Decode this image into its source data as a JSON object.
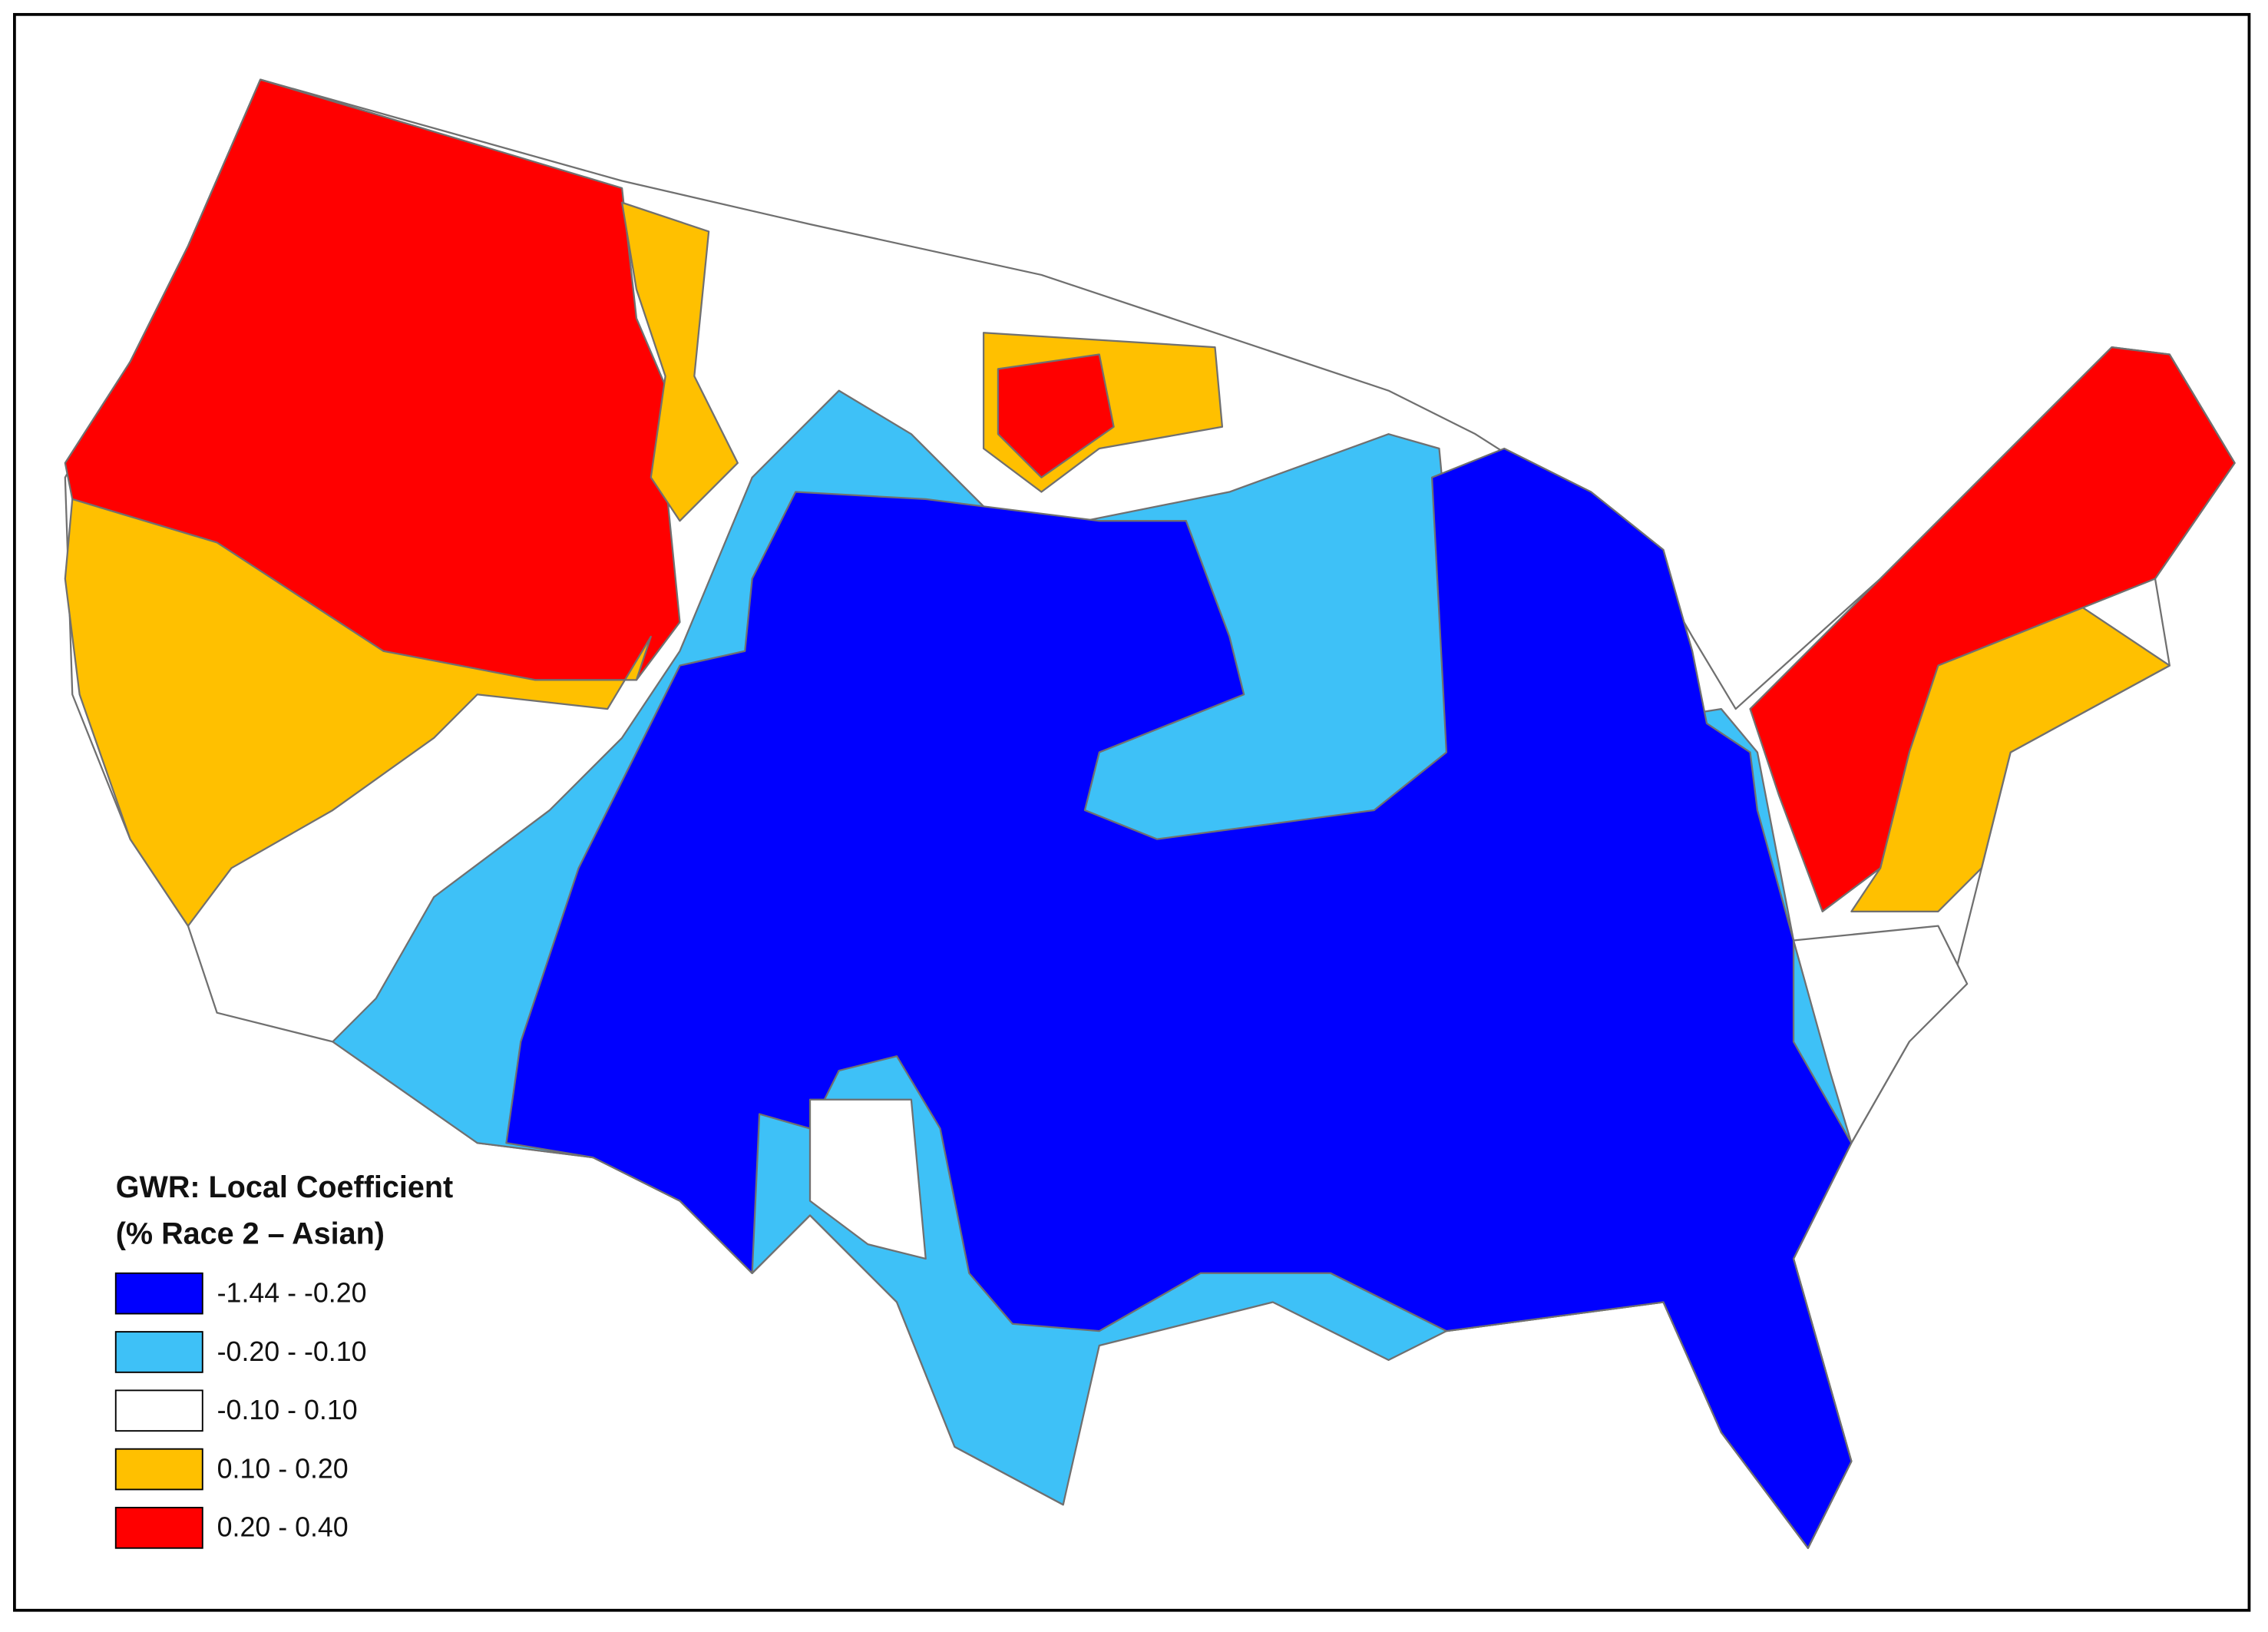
{
  "legend": {
    "title": "GWR: Local Coefficient",
    "subtitle": "(% Race 2 – Asian)",
    "items": [
      {
        "label": "-1.44 - -0.20",
        "color": "#0000ff"
      },
      {
        "label": "-0.20 - -0.10",
        "color": "#3ec1f7"
      },
      {
        "label": "-0.10 - 0.10",
        "color": "#ffffff"
      },
      {
        "label": "0.10 - 0.20",
        "color": "#ffc000"
      },
      {
        "label": "0.20 - 0.40",
        "color": "#ff0000"
      }
    ]
  }
}
